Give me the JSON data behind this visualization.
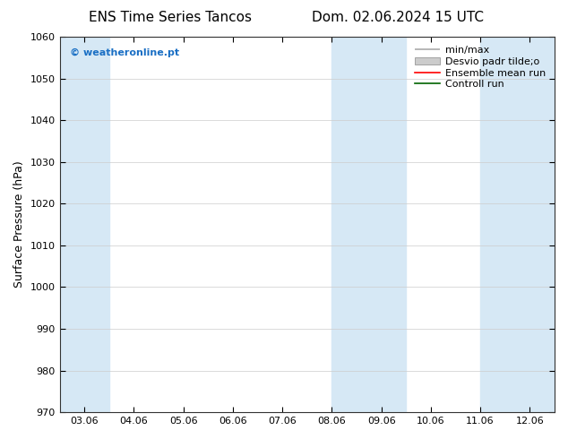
{
  "title_left": "ENS Time Series Tancos",
  "title_right": "Dom. 02.06.2024 15 UTC",
  "ylabel": "Surface Pressure (hPa)",
  "ylim": [
    970,
    1060
  ],
  "yticks": [
    970,
    980,
    990,
    1000,
    1010,
    1020,
    1030,
    1040,
    1050,
    1060
  ],
  "xlim": [
    -0.5,
    9.5
  ],
  "xtick_labels": [
    "03.06",
    "04.06",
    "05.06",
    "06.06",
    "07.06",
    "08.06",
    "09.06",
    "10.06",
    "11.06",
    "12.06"
  ],
  "xtick_positions": [
    0,
    1,
    2,
    3,
    4,
    5,
    6,
    7,
    8,
    9
  ],
  "shaded_bands": [
    {
      "x_start": -0.5,
      "x_end": 0.5
    },
    {
      "x_start": 5.0,
      "x_end": 6.5
    },
    {
      "x_start": 8.0,
      "x_end": 9.5
    }
  ],
  "shade_color": "#d6e8f5",
  "background_color": "#ffffff",
  "watermark_text": "© weatheronline.pt",
  "watermark_color": "#1a6fc4",
  "legend_label_minmax": "min/max",
  "legend_label_desvio": "Desvio padr tilde;o",
  "legend_label_ensemble": "Ensemble mean run",
  "legend_label_control": "Controll run",
  "legend_color_minmax": "#aaaaaa",
  "legend_color_desvio": "#cccccc",
  "legend_color_ensemble": "#ff0000",
  "legend_color_control": "#006400",
  "title_fontsize": 11,
  "tick_fontsize": 8,
  "ylabel_fontsize": 9,
  "legend_fontsize": 8,
  "watermark_fontsize": 8
}
